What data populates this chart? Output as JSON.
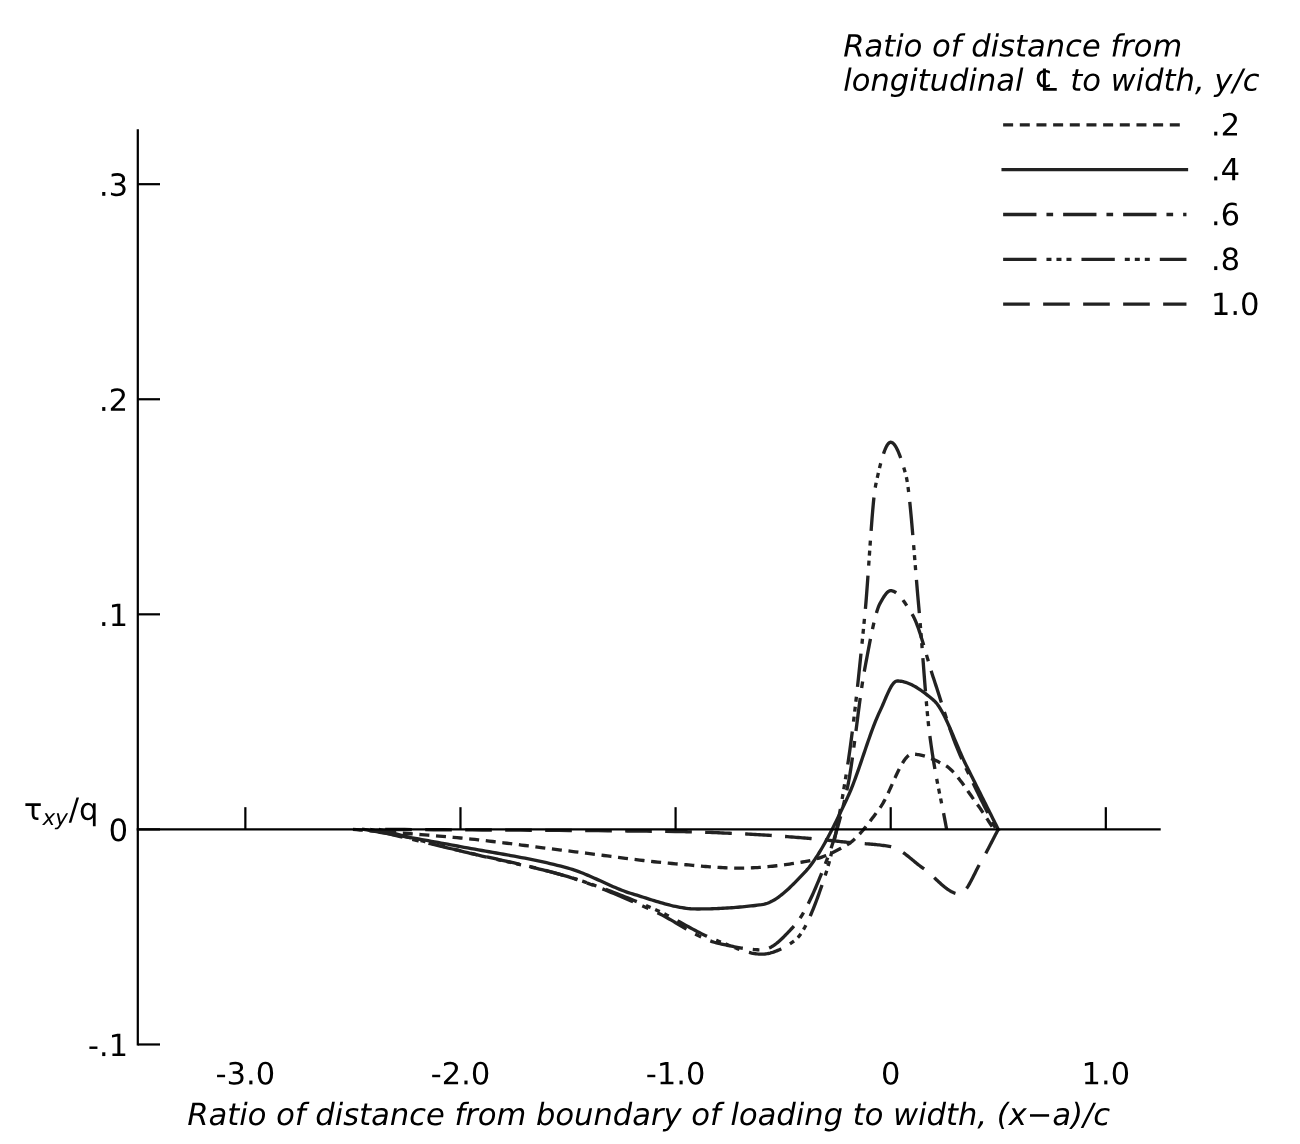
{
  "chart_data": {
    "type": "line",
    "xlabel": "Ratio of distance from boundary of loading to width, (x−a)/c",
    "ylabel": "τ$_{xy}$/q",
    "legend_title": "Ratio of distance from\nlongitudinal ℄ to width, y/c",
    "xlim": [
      -3.5,
      1.25
    ],
    "ylim": [
      -0.1,
      0.325
    ],
    "xticks": [
      {
        "value": -3,
        "label": "-3.0"
      },
      {
        "value": -2,
        "label": "-2.0"
      },
      {
        "value": -1,
        "label": "-1.0"
      },
      {
        "value": 0,
        "label": "0"
      },
      {
        "value": 1,
        "label": "1.0"
      }
    ],
    "yticks": [
      {
        "value": -0.1,
        "label": "-.1"
      },
      {
        "value": 0,
        "label": "0"
      },
      {
        "value": 0.1,
        "label": ".1"
      },
      {
        "value": 0.2,
        "label": ".2"
      },
      {
        "value": 0.3,
        "label": ".3"
      }
    ],
    "legend": "top right",
    "marker": "none",
    "series": [
      {
        "name": ".2",
        "color": "#222222",
        "line_style": "dashed",
        "x": [
          -2.5,
          -2.0,
          -1.5,
          -1.0,
          -0.7,
          -0.4,
          -0.2,
          -0.05,
          0.1,
          0.25,
          0.4,
          0.48
        ],
        "values": [
          0,
          -0.004,
          -0.01,
          -0.016,
          -0.018,
          -0.015,
          -0.007,
          0.01,
          0.035,
          0.03,
          0.012,
          0
        ]
      },
      {
        "name": ".4",
        "color": "#222222",
        "line_style": "solid",
        "x": [
          -2.45,
          -2.0,
          -1.5,
          -1.2,
          -0.9,
          -0.6,
          -0.4,
          -0.2,
          -0.05,
          0.03,
          0.2,
          0.35,
          0.5
        ],
        "values": [
          0,
          -0.008,
          -0.018,
          -0.03,
          -0.037,
          -0.035,
          -0.02,
          0.015,
          0.055,
          0.069,
          0.06,
          0.03,
          0
        ]
      },
      {
        "name": ".6",
        "color": "#222222",
        "line_style": "dashdot",
        "x": [
          -2.42,
          -2.0,
          -1.5,
          -1.1,
          -0.8,
          -0.6,
          -0.45,
          -0.3,
          -0.2,
          -0.12,
          -0.05,
          0,
          0.1,
          0.2,
          0.3,
          0.4,
          0.49
        ],
        "values": [
          0,
          -0.01,
          -0.022,
          -0.038,
          -0.053,
          -0.056,
          -0.045,
          -0.015,
          0.02,
          0.075,
          0.105,
          0.111,
          0.1,
          0.07,
          0.04,
          0.018,
          0
        ]
      },
      {
        "name": ".8",
        "color": "#222222",
        "line_style": "dashdotdot",
        "x": [
          -2.38,
          -2.0,
          -1.5,
          -1.1,
          -0.8,
          -0.6,
          -0.45,
          -0.3,
          -0.2,
          -0.12,
          -0.07,
          0,
          0.07,
          0.13,
          0.18,
          0.26
        ],
        "values": [
          0,
          -0.01,
          -0.022,
          -0.037,
          -0.052,
          -0.058,
          -0.052,
          -0.02,
          0.03,
          0.1,
          0.16,
          0.18,
          0.165,
          0.104,
          0.045,
          0
        ]
      },
      {
        "name": "1.0",
        "color": "#222222",
        "line_style": "longdash",
        "x": [
          -2.35,
          -1.0,
          -0.7,
          -0.4,
          -0.2,
          0,
          0.15,
          0.32,
          0.42,
          0.5
        ],
        "values": [
          0,
          -0.001,
          -0.002,
          -0.004,
          -0.006,
          -0.008,
          -0.018,
          -0.03,
          -0.015,
          0
        ]
      }
    ]
  }
}
